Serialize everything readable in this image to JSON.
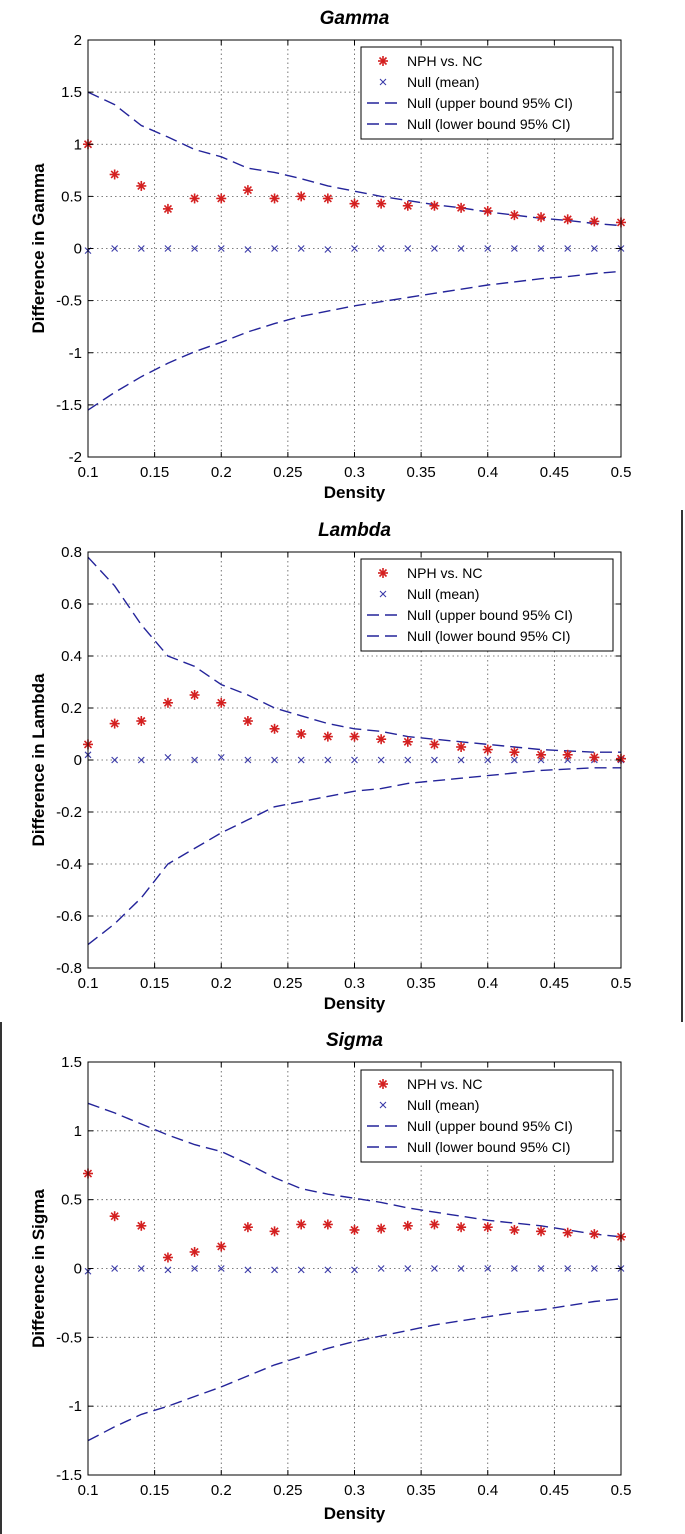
{
  "colors": {
    "observed": "#d42020",
    "null_mean": "#3a3aa8",
    "ci_line": "#24249a",
    "axis": "#000000",
    "grid": "#555555"
  },
  "chart_data": [
    {
      "type": "scatter",
      "title": "Gamma",
      "xlabel": "Density",
      "ylabel": "Difference in Gamma",
      "xlim": [
        0.1,
        0.5
      ],
      "ylim": [
        -2,
        2
      ],
      "xticks": [
        0.1,
        0.15,
        0.2,
        0.25,
        0.3,
        0.35,
        0.4,
        0.45,
        0.5
      ],
      "xtick_labels": [
        "0.1",
        "0.15",
        "0.2",
        "0.25",
        "0.3",
        "0.35",
        "0.4",
        "0.45",
        "0.5"
      ],
      "yticks": [
        -2,
        -1.5,
        -1,
        -0.5,
        0,
        0.5,
        1,
        1.5,
        2
      ],
      "ytick_labels": [
        "-2",
        "-1.5",
        "-1",
        "-0.5",
        "0",
        "0.5",
        "1",
        "1.5",
        "2"
      ],
      "grid": true,
      "legend_position": "top-right",
      "x": [
        0.1,
        0.12,
        0.14,
        0.16,
        0.18,
        0.2,
        0.22,
        0.24,
        0.26,
        0.28,
        0.3,
        0.32,
        0.34,
        0.36,
        0.38,
        0.4,
        0.42,
        0.44,
        0.46,
        0.48,
        0.5
      ],
      "series": [
        {
          "name": "NPH vs. NC",
          "style": "star",
          "values": [
            1.0,
            0.71,
            0.6,
            0.38,
            0.48,
            0.48,
            0.56,
            0.48,
            0.5,
            0.48,
            0.43,
            0.43,
            0.41,
            0.41,
            0.39,
            0.36,
            0.32,
            0.3,
            0.28,
            0.26,
            0.25
          ]
        },
        {
          "name": "Null (mean)",
          "style": "x",
          "values": [
            -0.02,
            0.0,
            0.0,
            0.0,
            0.0,
            0.0,
            -0.01,
            0.0,
            0.0,
            -0.01,
            0.0,
            0.0,
            0.0,
            0.0,
            0.0,
            0.0,
            0.0,
            0.0,
            0.0,
            0.0,
            0.0
          ]
        },
        {
          "name": "Null (upper bound 95% CI)",
          "style": "dashed",
          "values": [
            1.5,
            1.38,
            1.18,
            1.07,
            0.95,
            0.88,
            0.77,
            0.73,
            0.67,
            0.6,
            0.55,
            0.5,
            0.46,
            0.42,
            0.39,
            0.35,
            0.32,
            0.29,
            0.27,
            0.24,
            0.22
          ]
        },
        {
          "name": "Null (lower bound 95% CI)",
          "style": "dashed",
          "values": [
            -1.55,
            -1.38,
            -1.23,
            -1.1,
            -0.99,
            -0.9,
            -0.8,
            -0.72,
            -0.65,
            -0.6,
            -0.55,
            -0.51,
            -0.47,
            -0.43,
            -0.39,
            -0.35,
            -0.32,
            -0.29,
            -0.27,
            -0.24,
            -0.22
          ]
        }
      ]
    },
    {
      "type": "scatter",
      "title": "Lambda",
      "xlabel": "Density",
      "ylabel": "Difference in Lambda",
      "xlim": [
        0.1,
        0.5
      ],
      "ylim": [
        -0.8,
        0.8
      ],
      "xticks": [
        0.1,
        0.15,
        0.2,
        0.25,
        0.3,
        0.35,
        0.4,
        0.45,
        0.5
      ],
      "xtick_labels": [
        "0.1",
        "0.15",
        "0.2",
        "0.25",
        "0.3",
        "0.35",
        "0.4",
        "0.45",
        "0.5"
      ],
      "yticks": [
        -0.8,
        -0.6,
        -0.4,
        -0.2,
        0,
        0.2,
        0.4,
        0.6,
        0.8
      ],
      "ytick_labels": [
        "-0.8",
        "-0.6",
        "-0.4",
        "-0.2",
        "0",
        "0.2",
        "0.4",
        "0.6",
        "0.8"
      ],
      "grid": true,
      "legend_position": "top-right",
      "x": [
        0.1,
        0.12,
        0.14,
        0.16,
        0.18,
        0.2,
        0.22,
        0.24,
        0.26,
        0.28,
        0.3,
        0.32,
        0.34,
        0.36,
        0.38,
        0.4,
        0.42,
        0.44,
        0.46,
        0.48,
        0.5
      ],
      "series": [
        {
          "name": "NPH vs. NC",
          "style": "star",
          "values": [
            0.06,
            0.14,
            0.15,
            0.22,
            0.25,
            0.22,
            0.15,
            0.12,
            0.1,
            0.09,
            0.09,
            0.08,
            0.07,
            0.06,
            0.05,
            0.04,
            0.03,
            0.02,
            0.02,
            0.01,
            0.005
          ]
        },
        {
          "name": "Null (mean)",
          "style": "x",
          "values": [
            0.02,
            0.0,
            0.0,
            0.01,
            0.0,
            0.01,
            0.0,
            0.0,
            0.0,
            0.0,
            0.0,
            0.0,
            0.0,
            0.0,
            0.0,
            0.0,
            0.0,
            0.0,
            0.0,
            0.0,
            0.0
          ]
        },
        {
          "name": "Null (upper bound 95% CI)",
          "style": "dashed",
          "values": [
            0.78,
            0.67,
            0.52,
            0.4,
            0.36,
            0.29,
            0.25,
            0.2,
            0.17,
            0.14,
            0.12,
            0.11,
            0.09,
            0.08,
            0.07,
            0.06,
            0.05,
            0.04,
            0.035,
            0.03,
            0.03
          ]
        },
        {
          "name": "Null (lower bound 95% CI)",
          "style": "dashed",
          "values": [
            -0.71,
            -0.63,
            -0.53,
            -0.4,
            -0.34,
            -0.28,
            -0.23,
            -0.18,
            -0.16,
            -0.14,
            -0.12,
            -0.11,
            -0.09,
            -0.08,
            -0.07,
            -0.06,
            -0.05,
            -0.04,
            -0.035,
            -0.03,
            -0.03
          ]
        }
      ]
    },
    {
      "type": "scatter",
      "title": "Sigma",
      "xlabel": "Density",
      "ylabel": "Difference in Sigma",
      "xlim": [
        0.1,
        0.5
      ],
      "ylim": [
        -1.5,
        1.5
      ],
      "xticks": [
        0.1,
        0.15,
        0.2,
        0.25,
        0.3,
        0.35,
        0.4,
        0.45,
        0.5
      ],
      "xtick_labels": [
        "0.1",
        "0.15",
        "0.2",
        "0.25",
        "0.3",
        "0.35",
        "0.4",
        "0.45",
        "0.5"
      ],
      "yticks": [
        -1.5,
        -1,
        -0.5,
        0,
        0.5,
        1,
        1.5
      ],
      "ytick_labels": [
        "-1.5",
        "-1",
        "-0.5",
        "0",
        "0.5",
        "1",
        "1.5"
      ],
      "grid": true,
      "legend_position": "top-right",
      "x": [
        0.1,
        0.12,
        0.14,
        0.16,
        0.18,
        0.2,
        0.22,
        0.24,
        0.26,
        0.28,
        0.3,
        0.32,
        0.34,
        0.36,
        0.38,
        0.4,
        0.42,
        0.44,
        0.46,
        0.48,
        0.5
      ],
      "series": [
        {
          "name": "NPH vs. NC",
          "style": "star",
          "values": [
            0.69,
            0.38,
            0.31,
            0.08,
            0.12,
            0.16,
            0.3,
            0.27,
            0.32,
            0.32,
            0.28,
            0.29,
            0.31,
            0.32,
            0.3,
            0.3,
            0.28,
            0.27,
            0.26,
            0.25,
            0.23
          ]
        },
        {
          "name": "Null (mean)",
          "style": "x",
          "values": [
            -0.02,
            0.0,
            0.0,
            -0.01,
            0.0,
            0.0,
            -0.01,
            -0.01,
            -0.01,
            -0.01,
            -0.01,
            0.0,
            0.0,
            0.0,
            0.0,
            0.0,
            0.0,
            0.0,
            0.0,
            0.0,
            0.0
          ]
        },
        {
          "name": "Null (upper bound 95% CI)",
          "style": "dashed",
          "values": [
            1.2,
            1.13,
            1.05,
            0.97,
            0.9,
            0.85,
            0.76,
            0.66,
            0.58,
            0.54,
            0.51,
            0.48,
            0.44,
            0.41,
            0.38,
            0.35,
            0.33,
            0.31,
            0.28,
            0.25,
            0.23
          ]
        },
        {
          "name": "Null (lower bound 95% CI)",
          "style": "dashed",
          "values": [
            -1.25,
            -1.15,
            -1.06,
            -1.0,
            -0.93,
            -0.86,
            -0.78,
            -0.7,
            -0.64,
            -0.58,
            -0.53,
            -0.49,
            -0.45,
            -0.41,
            -0.38,
            -0.35,
            -0.32,
            -0.3,
            -0.27,
            -0.24,
            -0.22
          ]
        }
      ]
    }
  ]
}
